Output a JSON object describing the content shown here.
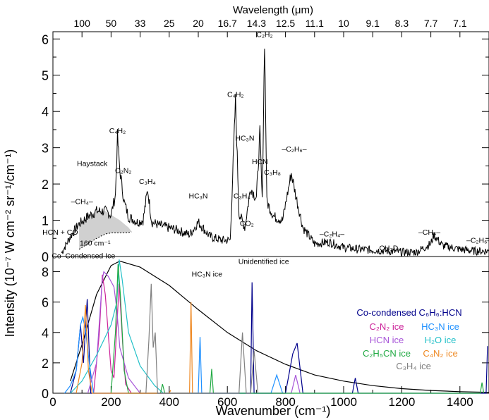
{
  "figure": {
    "top_axis_label": "Wavelength (μm)",
    "y_axis_label": "Intensity (10⁻⁷ W cm⁻² sr⁻¹/cm⁻¹)",
    "x_axis_label": "Wavenumber (cm⁻¹)"
  },
  "chart_data": [
    {
      "type": "line",
      "panel": "top",
      "xlim": [
        0,
        1500
      ],
      "ylim": [
        0,
        6.2
      ],
      "yticks": [
        0,
        1,
        2,
        3,
        4,
        5,
        6
      ],
      "top_axis_ticks": [
        {
          "label": "100",
          "x": 100
        },
        {
          "label": "50",
          "x": 200
        },
        {
          "label": "33",
          "x": 300
        },
        {
          "label": "25",
          "x": 400
        },
        {
          "label": "20",
          "x": 500
        },
        {
          "label": "16.7",
          "x": 600
        },
        {
          "label": "14.3",
          "x": 700
        },
        {
          "label": "12.5",
          "x": 800
        },
        {
          "label": "11.1",
          "x": 900
        },
        {
          "label": "10",
          "x": 1000
        },
        {
          "label": "9.1",
          "x": 1100
        },
        {
          "label": "8.3",
          "x": 1200
        },
        {
          "label": "7.7",
          "x": 1300
        },
        {
          "label": "7.1",
          "x": 1400
        }
      ],
      "series": [
        {
          "color": "#000000",
          "x": [
            30,
            60,
            90,
            120,
            150,
            180,
            200,
            215,
            222,
            230,
            245,
            260,
            290,
            310,
            326,
            340,
            370,
            420,
            470,
            500,
            540,
            580,
            610,
            628,
            640,
            660,
            680,
            700,
            712,
            720,
            728,
            736,
            760,
            790,
            820,
            835,
            860,
            900,
            950,
            1000,
            1050,
            1100,
            1150,
            1200,
            1250,
            1300,
            1310,
            1340,
            1400,
            1450,
            1500
          ],
          "y": [
            0.1,
            0.55,
            0.9,
            1.1,
            1.25,
            1.25,
            1.15,
            1.7,
            3.3,
            2.4,
            1.5,
            1.1,
            0.95,
            1.0,
            1.85,
            0.95,
            0.85,
            0.75,
            0.6,
            0.95,
            0.55,
            0.45,
            0.45,
            4.3,
            1.2,
            0.8,
            1.9,
            1.6,
            3.4,
            1.5,
            6.0,
            1.5,
            1.1,
            1.0,
            2.3,
            1.7,
            0.8,
            0.35,
            0.4,
            0.25,
            0.2,
            0.18,
            0.15,
            0.12,
            0.12,
            0.35,
            0.6,
            0.3,
            0.2,
            0.15,
            0.15
          ]
        }
      ],
      "shaded_region": {
        "label": "Co-Condensed Ice",
        "color": "#d0d0d0",
        "x": [
          90,
          120,
          150,
          180,
          200,
          230,
          260,
          270
        ],
        "y_upper": [
          0.9,
          1.1,
          1.25,
          1.25,
          1.15,
          1.0,
          0.8,
          0.7
        ],
        "y_lower": [
          0.2,
          0.35,
          0.5,
          0.62,
          0.65,
          0.65,
          0.66,
          0.68
        ]
      },
      "annotations": [
        {
          "text": "C₂H₂",
          "x": 728,
          "y": 6.05
        },
        {
          "text": "C₄H₂",
          "x": 628,
          "y": 4.4
        },
        {
          "text": "C₄H₂",
          "x": 222,
          "y": 3.4
        },
        {
          "text": "HC₃N",
          "x": 660,
          "y": 3.2
        },
        {
          "text": "HCN",
          "x": 712,
          "y": 2.55
        },
        {
          "text": "C₃H₈",
          "x": 755,
          "y": 2.25
        },
        {
          "text": "–C₂H₆–",
          "x": 830,
          "y": 2.9
        },
        {
          "text": "Haystack",
          "x": 135,
          "y": 2.5
        },
        {
          "text": "C₂N₂",
          "x": 242,
          "y": 2.3
        },
        {
          "text": "C₃H₄",
          "x": 325,
          "y": 2.0
        },
        {
          "text": "HC₃N",
          "x": 500,
          "y": 1.6
        },
        {
          "text": "C₃H₄",
          "x": 650,
          "y": 1.6
        },
        {
          "text": "CO₂",
          "x": 667,
          "y": 0.85
        },
        {
          "text": "–CH₄–",
          "x": 100,
          "y": 1.45
        },
        {
          "text": "160 cm⁻¹",
          "x": 145,
          "y": 0.3
        },
        {
          "text": "Co–Condensed Ice",
          "x": 105,
          "y": -0.05
        },
        {
          "text": "HC₃N ice",
          "x": 530,
          "y": -0.55
        },
        {
          "text": "Unidentified ice",
          "x": 725,
          "y": -0.2
        },
        {
          "text": "–C₂H₄–",
          "x": 960,
          "y": 0.55
        },
        {
          "text": "CH₃D",
          "x": 1155,
          "y": 0.17
        },
        {
          "text": "–CH₄–",
          "x": 1295,
          "y": 0.6
        },
        {
          "text": "–C₂H₆–",
          "x": 1465,
          "y": 0.38
        },
        {
          "text": "HCN + CO",
          "x": 25,
          "y": 0.6
        }
      ]
    },
    {
      "type": "line",
      "panel": "bottom",
      "xlim": [
        0,
        1500
      ],
      "ylim": [
        0,
        9
      ],
      "yticks": [
        0,
        2,
        4,
        6,
        8
      ],
      "xticks": [
        0,
        200,
        400,
        600,
        800,
        1000,
        1200,
        1400
      ],
      "series": [
        {
          "color": "#000000",
          "x": [
            60,
            100,
            150,
            200,
            230,
            300,
            400,
            500,
            600,
            700,
            800,
            900,
            1000,
            1100,
            1200,
            1300,
            1400,
            1500
          ],
          "y": [
            0.8,
            3.2,
            6.5,
            8.4,
            8.7,
            8.3,
            7.1,
            5.5,
            4.0,
            2.8,
            1.9,
            1.2,
            0.8,
            0.5,
            0.3,
            0.18,
            0.1,
            0.06
          ]
        },
        {
          "name": "Co-condensed C₆H₆:HCN",
          "color": "#00008b",
          "x": [
            60,
            80,
            95,
            105,
            118,
            130,
            680,
            685,
            692,
            800,
            825,
            840,
            860,
            1030,
            1040,
            1050,
            1490,
            1495
          ],
          "y": [
            0,
            1.5,
            4.5,
            2.0,
            6.2,
            0,
            0,
            7.3,
            0,
            0,
            2.6,
            3.3,
            0,
            0,
            1.0,
            0,
            0,
            3.1
          ]
        },
        {
          "name": "C₂N₂ ice",
          "color": "#cc2299",
          "x": [
            140,
            160,
            170,
            180,
            200,
            210,
            228,
            240,
            250,
            270
          ],
          "y": [
            0,
            4.0,
            7.8,
            6.5,
            1.5,
            1.0,
            7.2,
            3.2,
            0.6,
            0
          ]
        },
        {
          "name": "HC₃N ice",
          "color": "#1e90ff",
          "x": [
            40,
            60,
            80,
            95,
            103,
            112,
            125,
            140,
            500,
            506,
            512,
            750,
            770,
            790
          ],
          "y": [
            0,
            0.5,
            1.5,
            4.5,
            5.0,
            4.2,
            2.0,
            0,
            0,
            3.7,
            0,
            0,
            1.2,
            0
          ]
        },
        {
          "name": "HCN ice",
          "color": "#a755d8",
          "x": [
            120,
            150,
            170,
            175,
            190,
            210,
            220,
            230,
            260,
            300,
            820,
            835,
            850
          ],
          "y": [
            0,
            2.0,
            7.5,
            8.0,
            7.7,
            7.0,
            5.5,
            3.0,
            1.0,
            0,
            0,
            1.2,
            0
          ]
        },
        {
          "name": "H₂O ice",
          "color": "#22c0c8",
          "x": [
            60,
            100,
            150,
            200,
            220,
            228,
            238,
            260,
            300,
            350,
            380
          ],
          "y": [
            0,
            0.8,
            2.5,
            4.5,
            6.0,
            8.8,
            7.5,
            4.0,
            1.8,
            0.5,
            0
          ]
        },
        {
          "name": "C₂H₅CN ice",
          "color": "#22aa44",
          "x": [
            200,
            215,
            224,
            232,
            245,
            260,
            370,
            377,
            385,
            540,
            546,
            552,
            1470,
            1476,
            1482
          ],
          "y": [
            0,
            4.0,
            8.5,
            6.5,
            1.5,
            0,
            0,
            0.6,
            0,
            0,
            1.6,
            0,
            0,
            0.7,
            0
          ]
        },
        {
          "name": "C₄N₂ ice",
          "color": "#ee8822",
          "x": [
            80,
            100,
            112,
            122,
            135,
            470,
            475,
            480,
            400,
            405
          ],
          "y": [
            0,
            2.0,
            5.8,
            1.5,
            0,
            0,
            6.0,
            0,
            0,
            0.2
          ]
        },
        {
          "name": "C₃H₄ ice",
          "color": "#808080",
          "x": [
            320,
            330,
            338,
            345,
            352,
            360,
            640,
            652,
            665,
            680,
            692,
            705
          ],
          "y": [
            0,
            3.5,
            7.2,
            3.0,
            4.0,
            0,
            0,
            4.0,
            0,
            0,
            2.8,
            0
          ]
        }
      ]
    }
  ]
}
